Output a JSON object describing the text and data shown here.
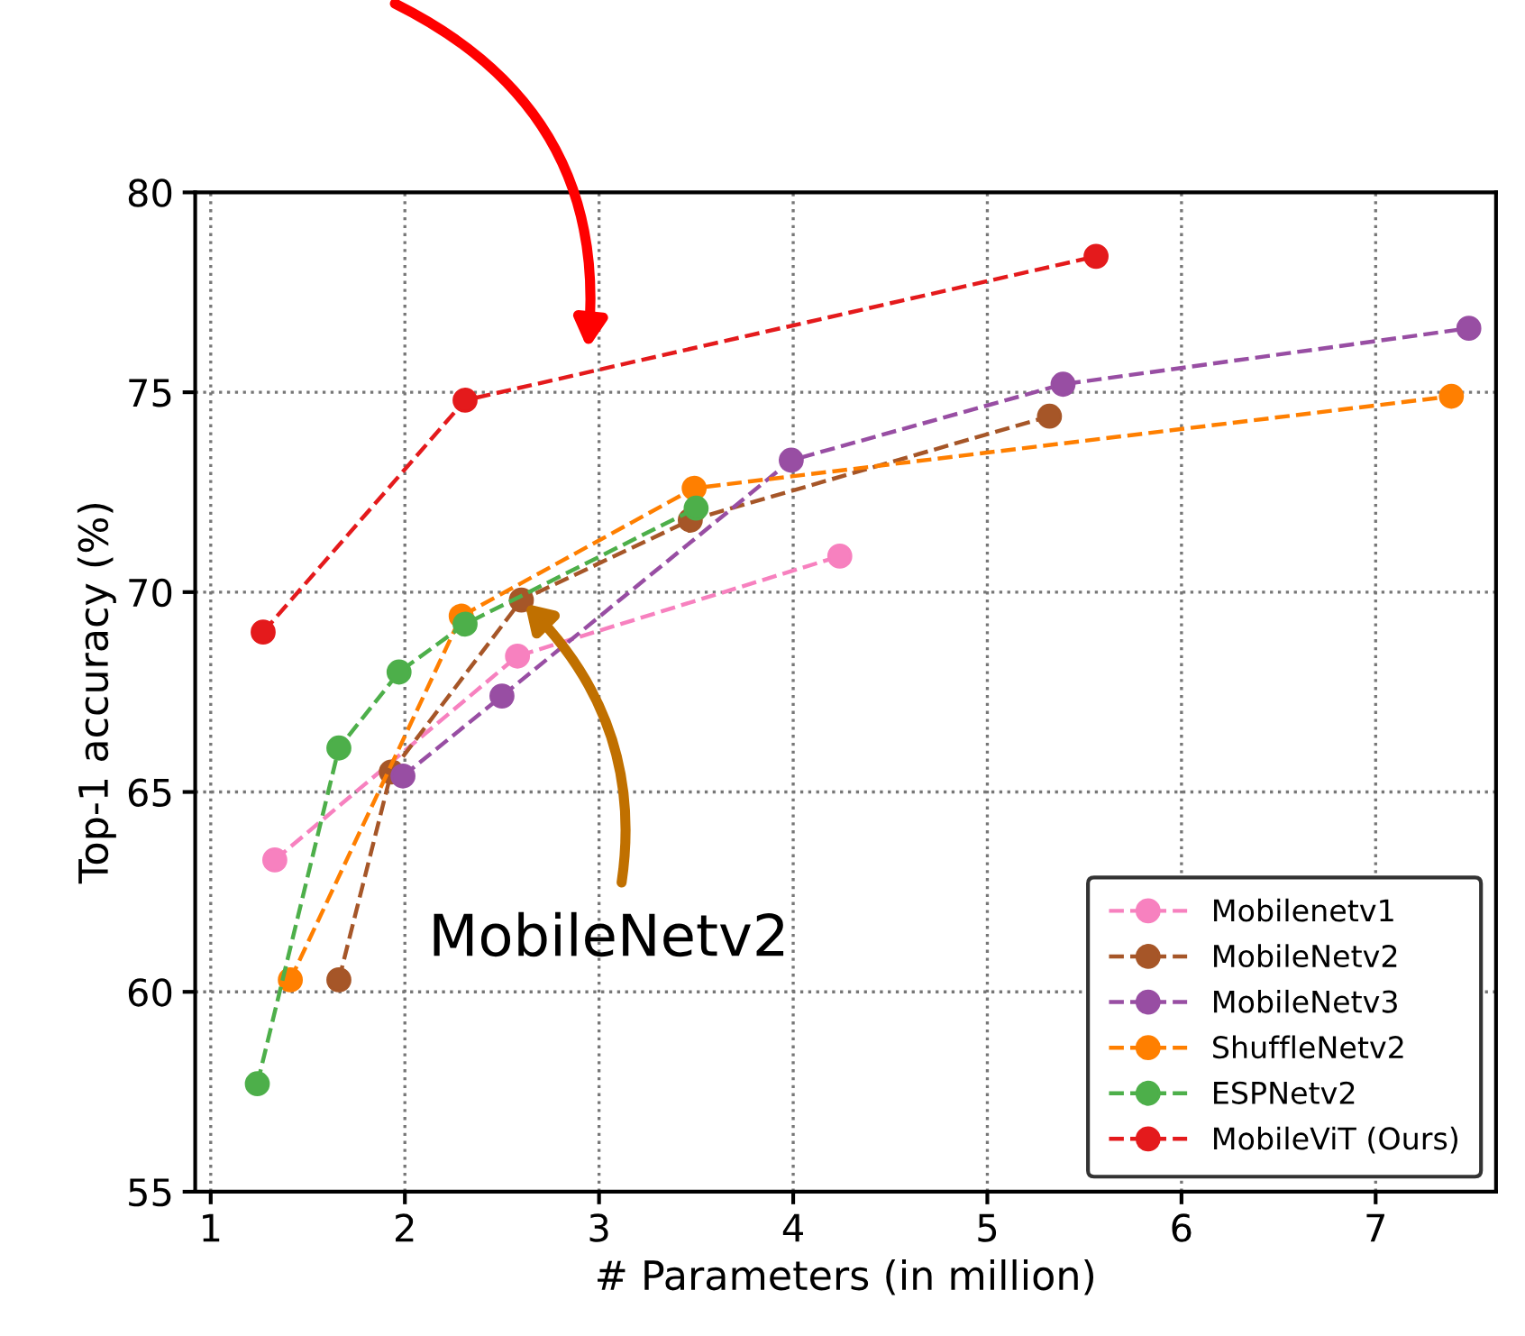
{
  "chart_data": {
    "type": "line",
    "xlabel": "# Parameters (in million)",
    "ylabel": "Top-1 accuracy (%)",
    "xlim": [
      0.92,
      7.62
    ],
    "ylim": [
      55,
      80
    ],
    "xticks": [
      1,
      2,
      3,
      4,
      5,
      6,
      7
    ],
    "yticks": [
      55,
      60,
      65,
      70,
      75,
      80
    ],
    "grid": true,
    "legend": "bottom right",
    "marker": "circle",
    "line_style": "dashed",
    "annotations": [
      {
        "text": "MobileNetv2",
        "x": 2.6,
        "y": 69.8
      }
    ],
    "series": [
      {
        "name": "Mobilenetv1",
        "color": "#f781bf",
        "x": [
          1.33,
          2.58,
          4.24
        ],
        "values": [
          63.3,
          68.4,
          70.9
        ]
      },
      {
        "name": "MobileNetv2",
        "color": "#a65628",
        "x": [
          1.66,
          1.93,
          2.6,
          3.47,
          5.32
        ],
        "values": [
          60.3,
          65.5,
          69.8,
          71.8,
          74.4
        ]
      },
      {
        "name": "MobileNetv3",
        "color": "#984ea3",
        "x": [
          1.99,
          2.5,
          3.99,
          5.39,
          7.48
        ],
        "values": [
          65.4,
          67.4,
          73.3,
          75.2,
          76.6
        ]
      },
      {
        "name": "ShuffleNetv2",
        "color": "#ff7f00",
        "x": [
          1.41,
          2.29,
          3.49,
          7.39
        ],
        "values": [
          60.3,
          69.4,
          72.6,
          74.9
        ]
      },
      {
        "name": "ESPNetv2",
        "color": "#4daf4a",
        "x": [
          1.24,
          1.66,
          1.97,
          2.31,
          3.5
        ],
        "values": [
          57.7,
          66.1,
          68.0,
          69.2,
          72.1
        ]
      },
      {
        "name": "MobileViT (Ours)",
        "color": "#e41a1c",
        "x": [
          1.27,
          2.31,
          5.56
        ],
        "values": [
          69.0,
          74.8,
          78.4
        ]
      }
    ]
  }
}
